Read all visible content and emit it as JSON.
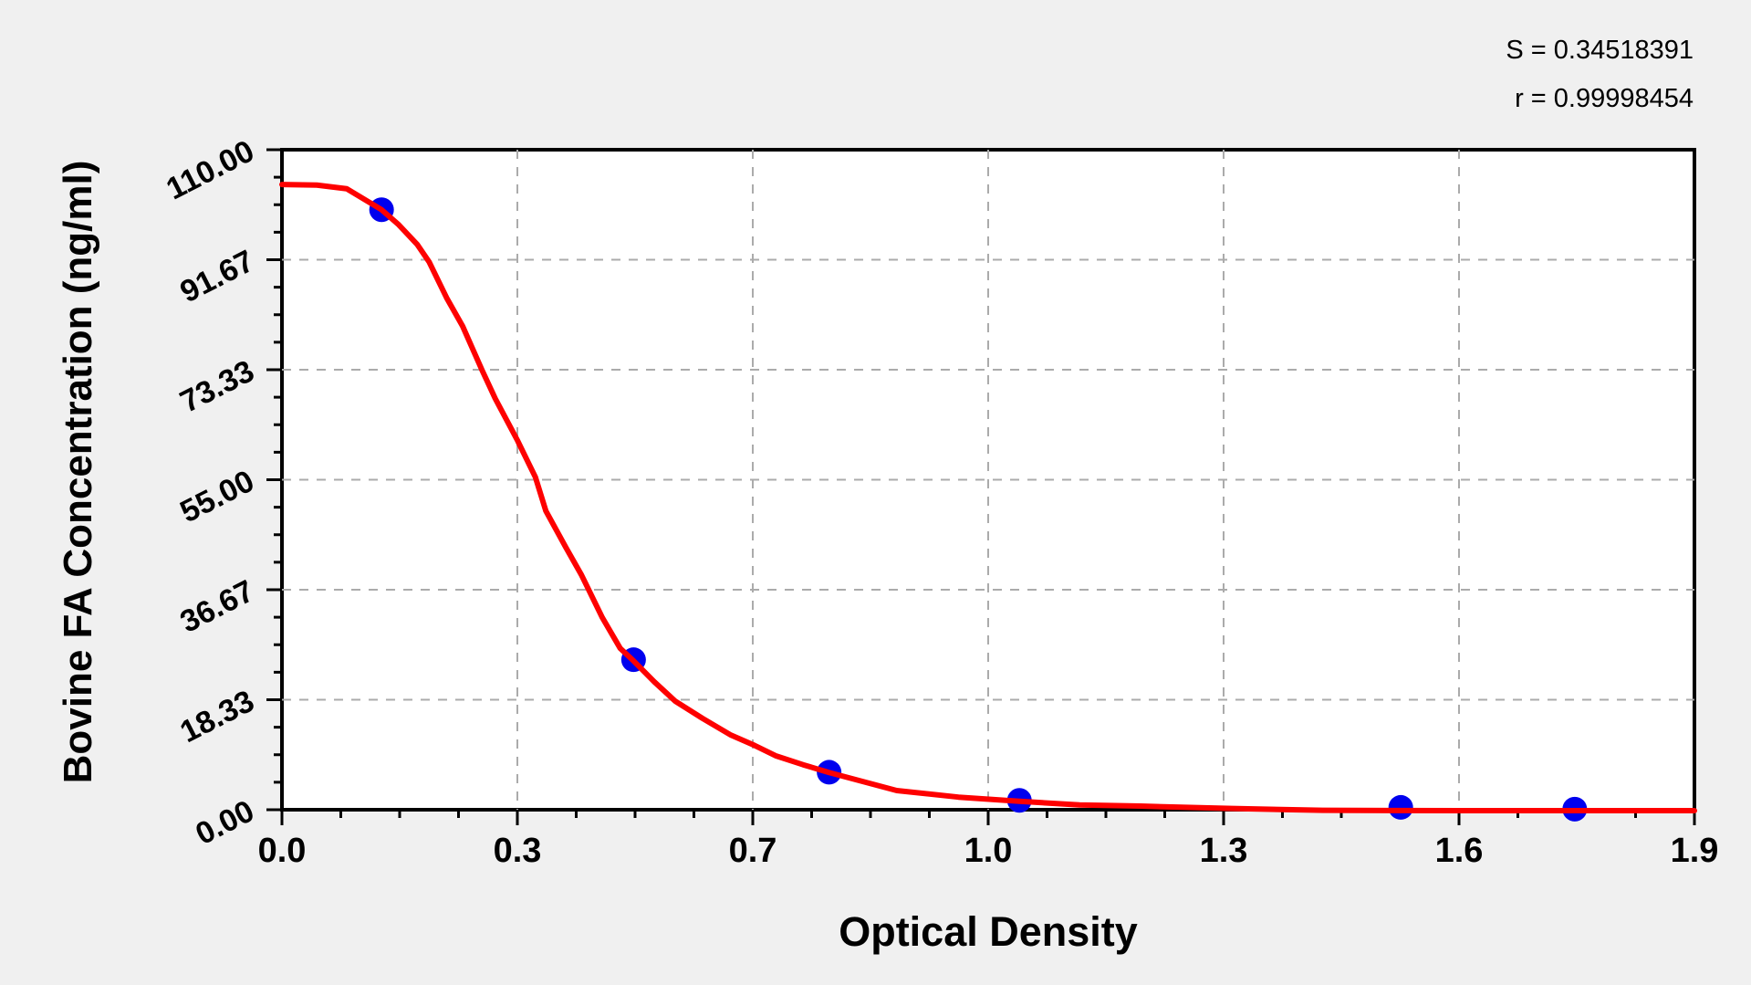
{
  "chart_data": {
    "type": "scatter",
    "xlabel": "Optical Density",
    "ylabel": "Bovine FA Concentration (ng/ml)",
    "x_tick_labels": [
      "0.0",
      "0.3",
      "0.7",
      "1.0",
      "1.3",
      "1.6",
      "1.9"
    ],
    "y_tick_labels": [
      "110.00",
      "91.67",
      "73.33",
      "55.00",
      "36.67",
      "18.33",
      "0.00"
    ],
    "xlim": [
      0,
      1.9
    ],
    "ylim": [
      0,
      110
    ],
    "grid": "dashed-major",
    "legend": "none",
    "annotations": [
      "S = 0.34518391",
      "r = 0.99998454"
    ],
    "colors": {
      "curve": "#fe0000",
      "points": "#0000ee",
      "grid": "#ababab",
      "axis": "#000000",
      "plot_bg": "#ffffff",
      "page_bg": "#f0f0f0"
    },
    "series": [
      {
        "name": "standard-points",
        "type": "scatter",
        "points": [
          {
            "od": 0.134,
            "conc": 100
          },
          {
            "od": 0.473,
            "conc": 25
          },
          {
            "od": 0.736,
            "conc": 6.25
          },
          {
            "od": 0.992,
            "conc": 1.56
          },
          {
            "od": 1.505,
            "conc": 0.39
          },
          {
            "od": 1.739,
            "conc": 0.1
          }
        ]
      },
      {
        "name": "4pl-fit-curve",
        "type": "line",
        "points": [
          [
            0.0,
            104.2
          ],
          [
            0.047,
            104.1
          ],
          [
            0.087,
            103.5
          ],
          [
            0.134,
            100.0
          ],
          [
            0.157,
            97.5
          ],
          [
            0.182,
            94.2
          ],
          [
            0.198,
            91.3
          ],
          [
            0.222,
            85.2
          ],
          [
            0.243,
            80.6
          ],
          [
            0.269,
            73.3
          ],
          [
            0.287,
            68.5
          ],
          [
            0.317,
            61.5
          ],
          [
            0.341,
            55.4
          ],
          [
            0.355,
            49.8
          ],
          [
            0.382,
            43.7
          ],
          [
            0.403,
            39.1
          ],
          [
            0.431,
            32.0
          ],
          [
            0.455,
            26.9
          ],
          [
            0.473,
            24.8
          ],
          [
            0.501,
            21.3
          ],
          [
            0.529,
            18.1
          ],
          [
            0.566,
            15.2
          ],
          [
            0.603,
            12.5
          ],
          [
            0.636,
            10.7
          ],
          [
            0.664,
            9.0
          ],
          [
            0.701,
            7.5
          ],
          [
            0.736,
            6.2
          ],
          [
            0.827,
            3.2
          ],
          [
            0.91,
            2.1
          ],
          [
            0.992,
            1.4
          ],
          [
            1.073,
            0.8
          ],
          [
            1.155,
            0.6
          ],
          [
            1.278,
            0.2
          ],
          [
            1.4,
            -0.1
          ],
          [
            1.584,
            -0.15
          ],
          [
            1.739,
            -0.15
          ],
          [
            1.9,
            -0.15
          ]
        ]
      }
    ]
  }
}
